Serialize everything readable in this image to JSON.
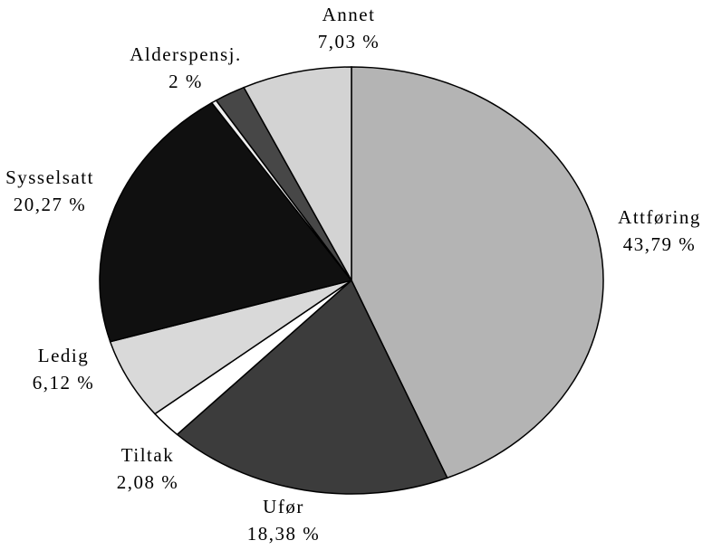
{
  "chart_data": {
    "type": "pie",
    "categories": [
      "Attføring",
      "Ufør",
      "Tiltak",
      "Ledig",
      "Sysselsatt",
      null,
      "Alderspensj.",
      "Annet"
    ],
    "values": [
      43.79,
      18.38,
      2.08,
      6.12,
      20.27,
      0.33,
      2,
      7.03
    ],
    "value_labels": [
      "43,79 %",
      "18,38 %",
      "2,08 %",
      "6,12 %",
      "20,27 %",
      null,
      "2 %",
      "7,03 %"
    ],
    "colors": [
      "#b4b4b4",
      "#3c3c3c",
      "#ffffff",
      "#d9d9d9",
      "#101010",
      "#f0f0f0",
      "#474747",
      "#d3d3d3"
    ]
  }
}
